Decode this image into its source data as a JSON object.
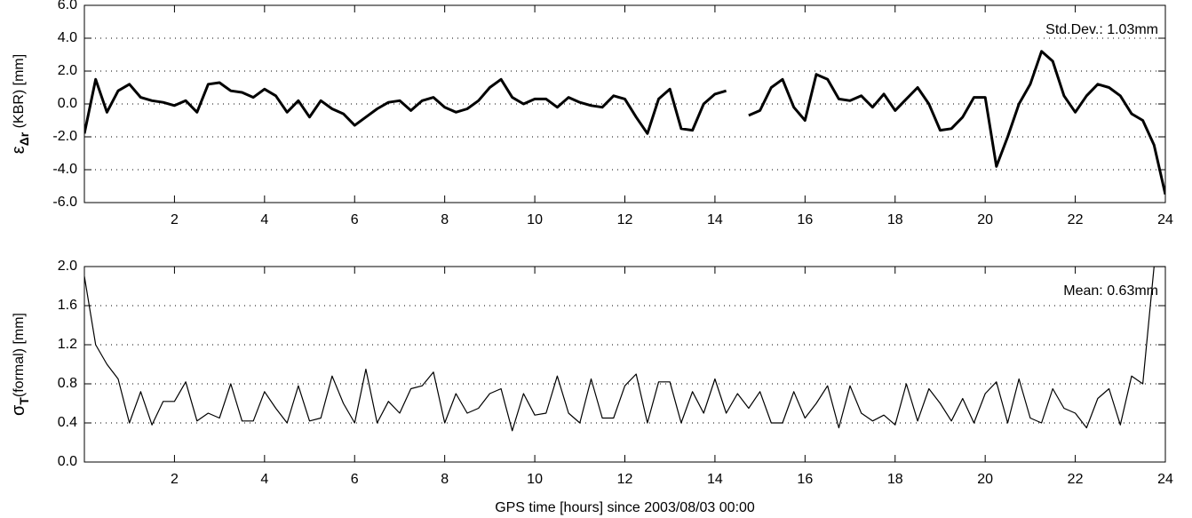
{
  "chart_data": [
    {
      "type": "line",
      "color": "#000000",
      "ylabel_symbol": "ε",
      "ylabel_subscript": "Δr",
      "ylabel": " (KBR) [mm]",
      "annotation": "Std.Dev.: 1.03mm",
      "xlim": [
        0,
        24
      ],
      "xticks": [
        2,
        4,
        6,
        8,
        10,
        12,
        14,
        16,
        18,
        20,
        22,
        24
      ],
      "ylim": [
        -6,
        6
      ],
      "yticks": [
        {
          "value": -6,
          "label": "-6.0"
        },
        {
          "value": -4,
          "label": "-4.0"
        },
        {
          "value": -2,
          "label": "-2.0"
        },
        {
          "value": 0,
          "label": "0.0"
        },
        {
          "value": 2,
          "label": "2.0"
        },
        {
          "value": 4,
          "label": "4.0"
        },
        {
          "value": 6,
          "label": "6.0"
        }
      ],
      "grid": true,
      "x": [
        0,
        0.25,
        0.5,
        0.75,
        1,
        1.25,
        1.5,
        1.75,
        2,
        2.25,
        2.5,
        2.75,
        3,
        3.25,
        3.5,
        3.75,
        4,
        4.25,
        4.5,
        4.75,
        5,
        5.25,
        5.5,
        5.75,
        6,
        6.25,
        6.5,
        6.75,
        7,
        7.25,
        7.5,
        7.75,
        8,
        8.25,
        8.5,
        8.75,
        9,
        9.25,
        9.5,
        9.75,
        10,
        10.25,
        10.5,
        10.75,
        11,
        11.25,
        11.5,
        11.75,
        12,
        12.25,
        12.5,
        12.75,
        13,
        13.25,
        13.5,
        13.75,
        14,
        14.25,
        14.5,
        14.75,
        15,
        15.25,
        15.5,
        15.75,
        16,
        16.25,
        16.5,
        16.75,
        17,
        17.25,
        17.5,
        17.75,
        18,
        18.25,
        18.5,
        18.75,
        19,
        19.25,
        19.5,
        19.75,
        20,
        20.25,
        20.5,
        20.75,
        21,
        21.25,
        21.5,
        21.75,
        22,
        22.25,
        22.5,
        22.75,
        23,
        23.25,
        23.5,
        23.75,
        24
      ],
      "values": [
        -1.8,
        1.5,
        -0.5,
        0.8,
        1.2,
        0.4,
        0.2,
        0.1,
        -0.1,
        0.2,
        -0.5,
        1.2,
        1.3,
        0.8,
        0.7,
        0.4,
        0.9,
        0.5,
        -0.5,
        0.2,
        -0.8,
        0.2,
        -0.3,
        -0.6,
        -1.3,
        -0.8,
        -0.3,
        0.1,
        0.2,
        -0.4,
        0.2,
        0.4,
        -0.2,
        -0.5,
        -0.3,
        0.2,
        1.0,
        1.5,
        0.4,
        0,
        0.3,
        0.3,
        -0.2,
        0.4,
        0.1,
        -0.1,
        -0.2,
        0.5,
        0.3,
        -0.8,
        -1.8,
        0.3,
        0.9,
        -1.5,
        -1.6,
        0.0,
        0.6,
        0.8,
        null,
        -0.7,
        -0.4,
        1.0,
        1.5,
        -0.2,
        -1.0,
        1.8,
        1.5,
        0.3,
        0.2,
        0.5,
        -0.2,
        0.6,
        -0.4,
        0.3,
        1.0,
        0.0,
        -1.6,
        -1.5,
        -0.8,
        0.4,
        0.4,
        -3.8,
        -2.0,
        0.0,
        1.2,
        3.2,
        2.6,
        0.5,
        -0.5,
        0.5,
        1.2,
        1.0,
        0.5,
        -0.6,
        -1.0,
        -2.5,
        -5.5
      ]
    },
    {
      "type": "line",
      "color": "#000000",
      "ylabel_symbol": "σ",
      "ylabel_subscript": "T",
      "ylabel": "(formal) [mm]",
      "annotation": "Mean: 0.63mm",
      "xlabel": "GPS time [hours] since 2003/08/03  00:00",
      "xlim": [
        0,
        24
      ],
      "xticks": [
        2,
        4,
        6,
        8,
        10,
        12,
        14,
        16,
        18,
        20,
        22,
        24
      ],
      "ylim": [
        0,
        2
      ],
      "yticks": [
        {
          "value": 0,
          "label": "0.0"
        },
        {
          "value": 0.4,
          "label": "0.4"
        },
        {
          "value": 0.8,
          "label": "0.8"
        },
        {
          "value": 1.2,
          "label": "1.2"
        },
        {
          "value": 1.6,
          "label": "1.6"
        },
        {
          "value": 2,
          "label": "2.0"
        }
      ],
      "grid": true,
      "x": [
        0,
        0.25,
        0.5,
        0.75,
        1,
        1.25,
        1.5,
        1.75,
        2,
        2.25,
        2.5,
        2.75,
        3,
        3.25,
        3.5,
        3.75,
        4,
        4.25,
        4.5,
        4.75,
        5,
        5.25,
        5.5,
        5.75,
        6,
        6.25,
        6.5,
        6.75,
        7,
        7.25,
        7.5,
        7.75,
        8,
        8.25,
        8.5,
        8.75,
        9,
        9.25,
        9.5,
        9.75,
        10,
        10.25,
        10.5,
        10.75,
        11,
        11.25,
        11.5,
        11.75,
        12,
        12.25,
        12.5,
        12.75,
        13,
        13.25,
        13.5,
        13.75,
        14,
        14.25,
        14.5,
        14.75,
        15,
        15.25,
        15.5,
        15.75,
        16,
        16.25,
        16.5,
        16.75,
        17,
        17.25,
        17.5,
        17.75,
        18,
        18.25,
        18.5,
        18.75,
        19,
        19.25,
        19.5,
        19.75,
        20,
        20.25,
        20.5,
        20.75,
        21,
        21.25,
        21.5,
        21.75,
        22,
        22.25,
        22.5,
        22.75,
        23,
        23.25,
        23.5,
        23.75,
        24
      ],
      "values": [
        1.9,
        1.2,
        1.0,
        0.85,
        0.4,
        0.72,
        0.38,
        0.62,
        0.62,
        0.82,
        0.42,
        0.5,
        0.45,
        0.8,
        0.42,
        0.42,
        0.72,
        0.55,
        0.4,
        0.78,
        0.42,
        0.45,
        0.88,
        0.6,
        0.4,
        0.95,
        0.4,
        0.62,
        0.5,
        0.75,
        0.78,
        0.92,
        0.4,
        0.7,
        0.5,
        0.55,
        0.7,
        0.75,
        0.32,
        0.7,
        0.48,
        0.5,
        0.88,
        0.5,
        0.4,
        0.85,
        0.45,
        0.45,
        0.78,
        0.9,
        0.4,
        0.82,
        0.82,
        0.4,
        0.72,
        0.5,
        0.85,
        0.5,
        0.7,
        0.55,
        0.72,
        0.4,
        0.4,
        0.72,
        0.45,
        0.6,
        0.78,
        0.35,
        0.78,
        0.5,
        0.42,
        0.48,
        0.38,
        0.8,
        0.42,
        0.75,
        0.6,
        0.42,
        0.65,
        0.4,
        0.7,
        0.82,
        0.4,
        0.85,
        0.45,
        0.4,
        0.75,
        0.55,
        0.5,
        0.35,
        0.65,
        0.75,
        0.38,
        0.88,
        0.8,
        2.0,
        2.0
      ]
    }
  ]
}
